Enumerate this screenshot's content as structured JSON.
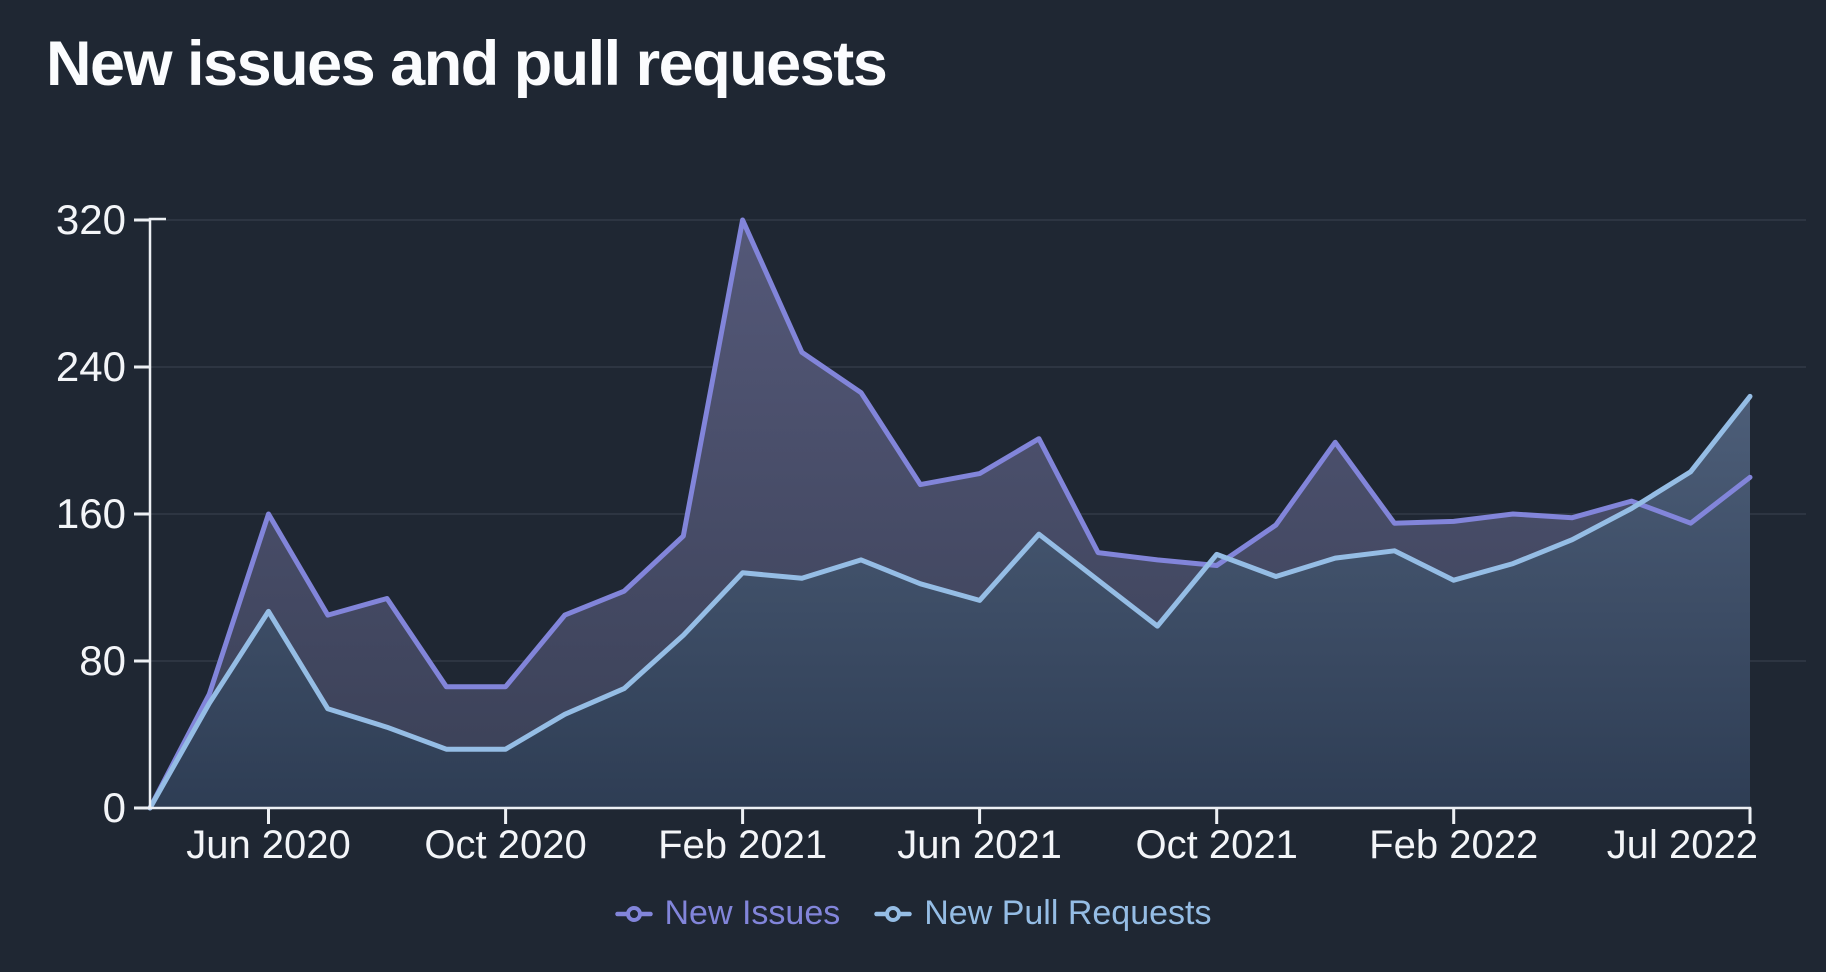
{
  "title": "New issues and pull requests",
  "legend": {
    "items": [
      {
        "id": "new-issues",
        "label": "New Issues",
        "color": "#8285da"
      },
      {
        "id": "new-pull-requests",
        "label": "New Pull Requests",
        "color": "#95bde5"
      }
    ]
  },
  "colors": {
    "background": "#1f2733",
    "axis": "#edf0f4",
    "tick_label": "#f3f5f8",
    "grid": "rgba(214,228,244,0.08)",
    "issues_line": "#8285da",
    "issues_fill_top": "#545878",
    "issues_fill_bottom": "#3a4056",
    "pulls_line": "#95bde5",
    "pulls_fill_top": "#5a6c88",
    "pulls_fill_bottom": "#2e3d54"
  },
  "chart_data": {
    "type": "area",
    "title": "New issues and pull requests",
    "x": [
      "Apr 2020",
      "May 2020",
      "Jun 2020",
      "Jul 2020",
      "Aug 2020",
      "Sep 2020",
      "Oct 2020",
      "Nov 2020",
      "Dec 2020",
      "Jan 2021",
      "Feb 2021",
      "Mar 2021",
      "Apr 2021",
      "May 2021",
      "Jun 2021",
      "Jul 2021",
      "Aug 2021",
      "Sep 2021",
      "Oct 2021",
      "Nov 2021",
      "Dec 2021",
      "Jan 2022",
      "Feb 2022",
      "Mar 2022",
      "Apr 2022",
      "May 2022",
      "Jun 2022",
      "Jul 2022"
    ],
    "series": [
      {
        "id": "new-issues",
        "name": "New Issues",
        "values": [
          0,
          62,
          160,
          105,
          114,
          66,
          66,
          105,
          118,
          148,
          320,
          248,
          226,
          176,
          182,
          201,
          139,
          135,
          132,
          154,
          199,
          155,
          156,
          160,
          158,
          167,
          155,
          180
        ]
      },
      {
        "id": "new-pull-requests",
        "name": "New Pull Requests",
        "values": [
          0,
          57,
          107,
          54,
          44,
          32,
          32,
          51,
          65,
          94,
          128,
          125,
          135,
          122,
          113,
          149,
          124,
          99,
          138,
          126,
          136,
          140,
          124,
          133,
          146,
          163,
          183,
          224
        ]
      }
    ],
    "ylim": [
      0,
      320
    ],
    "yticks": [
      0,
      80,
      160,
      240,
      320
    ],
    "xtick_labels": [
      "Jun 2020",
      "Oct 2020",
      "Feb 2021",
      "Jun 2021",
      "Oct 2021",
      "Feb 2022",
      "Jul 2022"
    ],
    "xtick_indices": [
      2,
      6,
      10,
      14,
      18,
      22,
      27
    ],
    "grid": "horizontal",
    "legend_position": "bottom"
  }
}
